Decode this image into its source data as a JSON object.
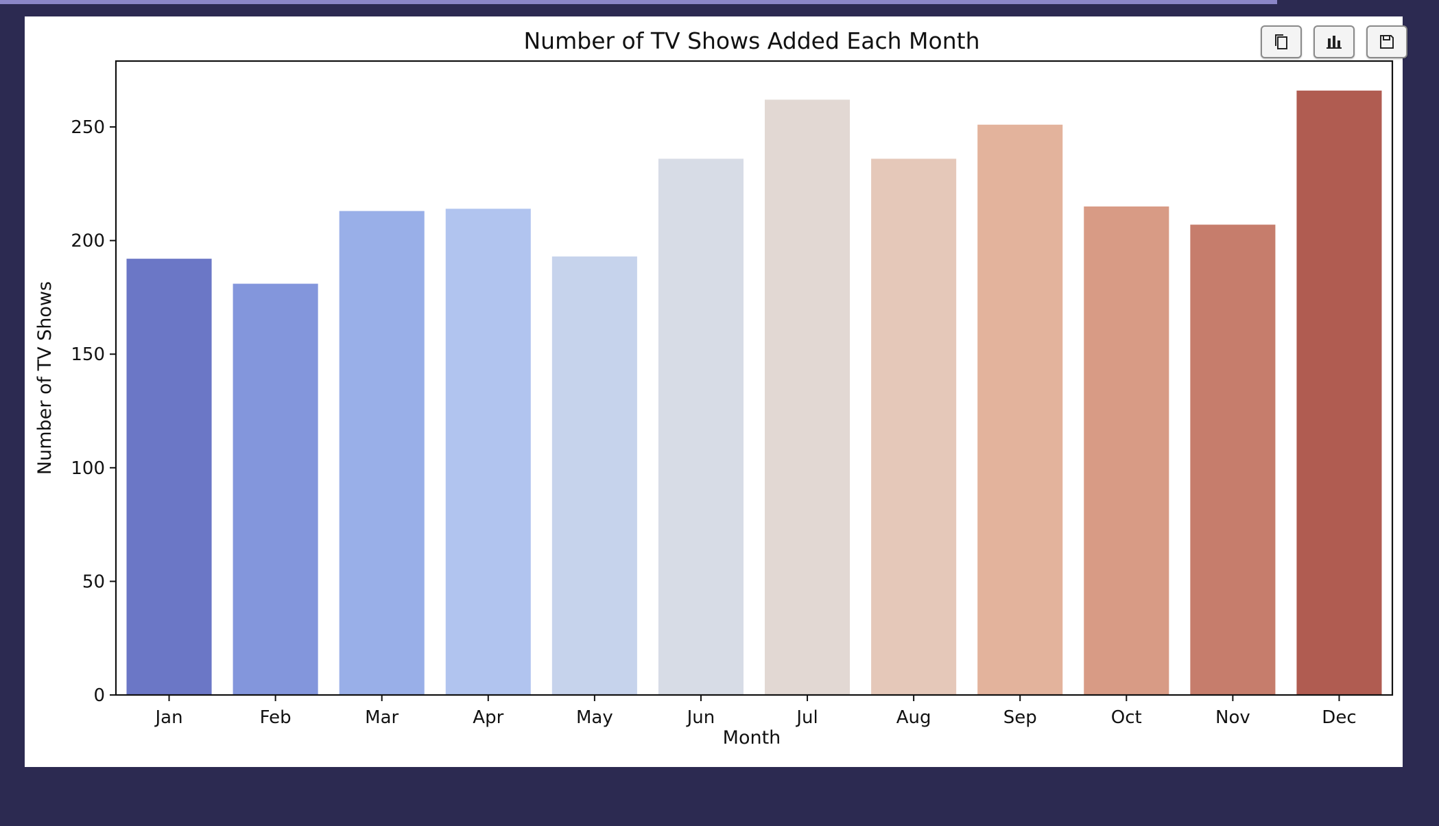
{
  "toolbar": {
    "buttons": [
      {
        "icon": "copy-icon"
      },
      {
        "icon": "bar-chart-icon"
      },
      {
        "icon": "save-icon"
      }
    ]
  },
  "chart_data": {
    "type": "bar",
    "title": "Number of TV Shows Added Each Month",
    "xlabel": "Month",
    "ylabel": "Number of TV Shows",
    "categories": [
      "Jan",
      "Feb",
      "Mar",
      "Apr",
      "May",
      "Jun",
      "Jul",
      "Aug",
      "Sep",
      "Oct",
      "Nov",
      "Dec"
    ],
    "values": [
      192,
      181,
      213,
      214,
      193,
      236,
      262,
      236,
      251,
      215,
      207,
      266
    ],
    "ylim": [
      0,
      279
    ],
    "yticks": [
      0,
      50,
      100,
      150,
      200,
      250
    ],
    "colors": [
      "#6b77c6",
      "#8396dc",
      "#99afe8",
      "#b1c4ef",
      "#c6d3ec",
      "#d7dce6",
      "#e2d8d3",
      "#e5c8b9",
      "#e3b39c",
      "#d89b85",
      "#c67d6c",
      "#b05c51"
    ],
    "grid": false,
    "legend": "none"
  }
}
